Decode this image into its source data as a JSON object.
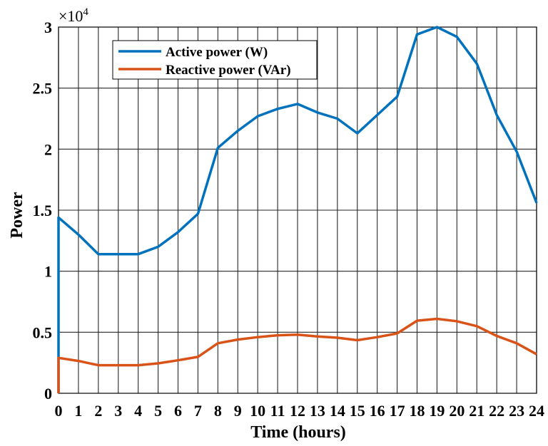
{
  "chart_data": {
    "type": "line",
    "title": "",
    "xlabel": "Time (hours)",
    "ylabel": "Power",
    "y_multiplier_label": "×10",
    "y_multiplier_exponent": "4",
    "xlim": [
      0,
      24
    ],
    "ylim": [
      0,
      30000
    ],
    "grid": true,
    "legend_position": "top-left",
    "x_ticks": [
      "0",
      "1",
      "2",
      "3",
      "4",
      "5",
      "6",
      "7",
      "8",
      "9",
      "10",
      "11",
      "12",
      "13",
      "14",
      "15",
      "16",
      "17",
      "18",
      "19",
      "20",
      "21",
      "22",
      "23",
      "24"
    ],
    "y_ticks": [
      "0",
      "0.5",
      "1",
      "1.5",
      "2",
      "2.5",
      "3"
    ],
    "x": [
      0,
      1,
      2,
      3,
      4,
      5,
      6,
      7,
      8,
      9,
      10,
      11,
      12,
      13,
      14,
      15,
      16,
      17,
      18,
      19,
      20,
      21,
      22,
      23,
      24
    ],
    "series": [
      {
        "name": "Active power (W)",
        "color": "#0072BD",
        "values": [
          14400,
          13000,
          11400,
          11400,
          11400,
          12000,
          13200,
          14700,
          20100,
          21500,
          22700,
          23300,
          23700,
          23000,
          22500,
          21300,
          22800,
          24300,
          29400,
          30000,
          29200,
          27000,
          22800,
          19800,
          15600
        ]
      },
      {
        "name": "Reactive power (VAr)",
        "color": "#D95319",
        "values": [
          2900,
          2650,
          2300,
          2300,
          2300,
          2450,
          2700,
          2980,
          4100,
          4400,
          4600,
          4750,
          4800,
          4650,
          4550,
          4350,
          4600,
          4900,
          5950,
          6100,
          5900,
          5500,
          4700,
          4100,
          3200
        ]
      }
    ]
  }
}
